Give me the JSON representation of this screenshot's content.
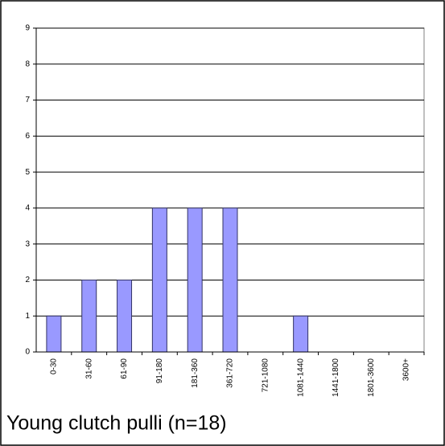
{
  "chart_data": {
    "type": "bar",
    "title": "Young clutch pulli (n=18)",
    "categories": [
      "0-30",
      "31-60",
      "61-90",
      "91-180",
      "181-360",
      "361-720",
      "721-1080",
      "1081-1440",
      "1441-1800",
      "1801-3600",
      "3600+"
    ],
    "values": [
      1,
      2,
      2,
      4,
      4,
      4,
      0,
      1,
      0,
      0,
      0
    ],
    "color": "#9999ff",
    "ylim": [
      0,
      9
    ],
    "yticks": [
      0,
      1,
      2,
      3,
      4,
      5,
      6,
      7,
      8,
      9
    ],
    "grid": true
  }
}
